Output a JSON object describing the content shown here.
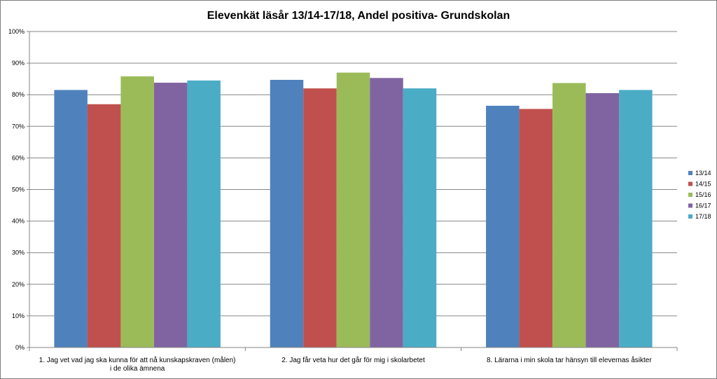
{
  "chart_data": {
    "type": "bar",
    "title": "Elevenkät läsår 13/14-17/18, Andel positiva- Grundskolan",
    "xlabel": "",
    "ylabel": "",
    "ylim": [
      0,
      100
    ],
    "y_ticks": [
      "0%",
      "10%",
      "20%",
      "30%",
      "40%",
      "50%",
      "60%",
      "70%",
      "80%",
      "90%",
      "100%"
    ],
    "grid": true,
    "legend_position": "right",
    "categories": [
      [
        "1. Jag vet vad jag ska kunna för att nå kunskapskraven (målen)",
        "i de olika ämnena"
      ],
      [
        "2. Jag får veta hur det går för mig i skolarbetet"
      ],
      [
        "8. Lärarna i min skola tar hänsyn till elevernas åsikter"
      ]
    ],
    "series": [
      {
        "name": "13/14",
        "color": "#4f81bd",
        "values": [
          81.5,
          84.7,
          76.5
        ]
      },
      {
        "name": "14/15",
        "color": "#c0504d",
        "values": [
          77.0,
          82.0,
          75.5
        ]
      },
      {
        "name": "15/16",
        "color": "#9bbb59",
        "values": [
          85.8,
          87.0,
          83.7
        ]
      },
      {
        "name": "16/17",
        "color": "#8064a2",
        "values": [
          83.8,
          85.3,
          80.5
        ]
      },
      {
        "name": "17/18",
        "color": "#4bacc6",
        "values": [
          84.5,
          82.0,
          81.5
        ]
      }
    ]
  }
}
